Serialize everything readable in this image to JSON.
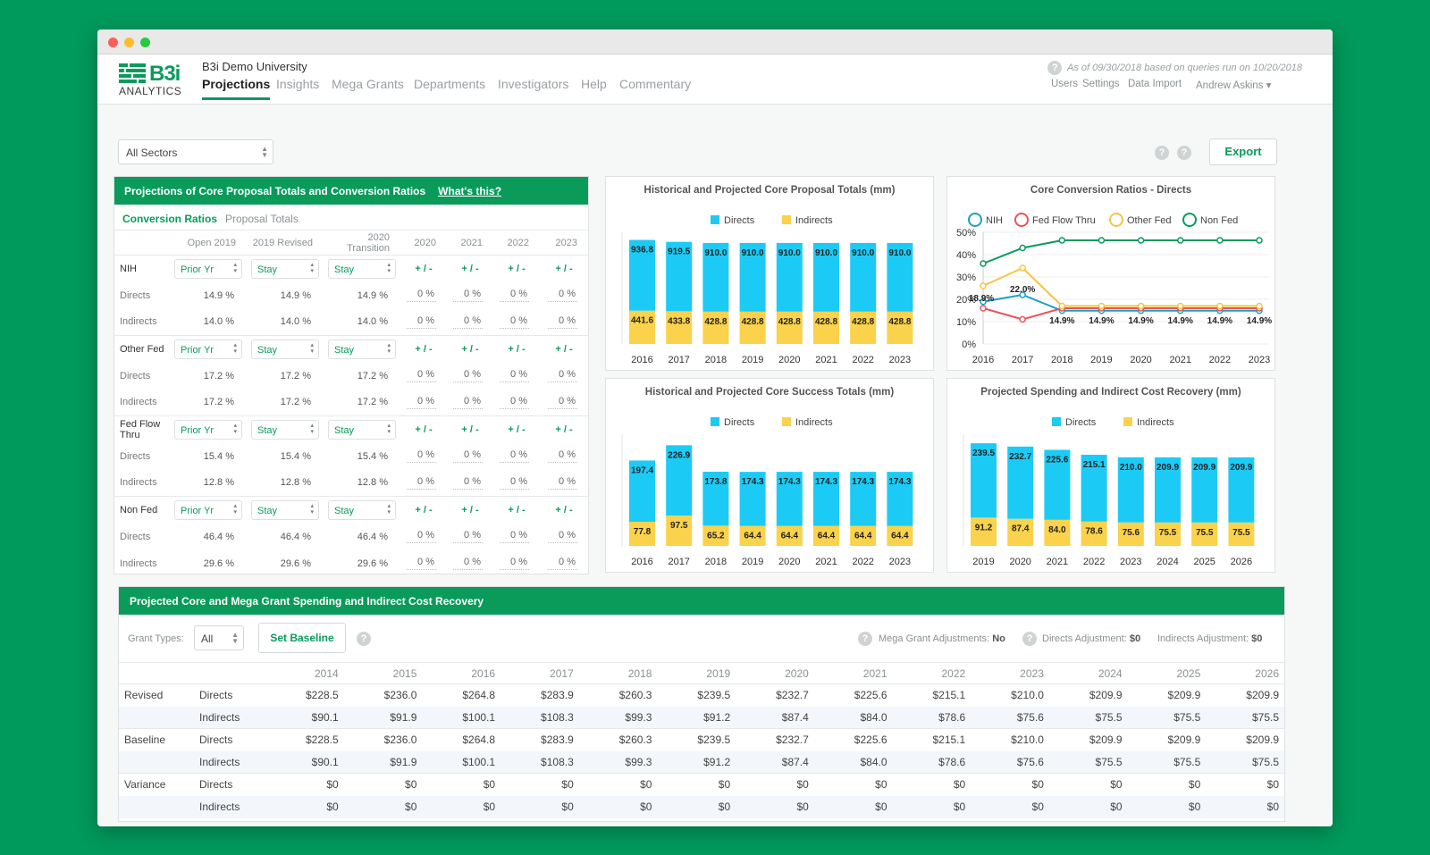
{
  "app": {
    "logo_text": "B3i",
    "logo_sub": "ANALYTICS",
    "university": "B3i Demo University",
    "nav": [
      "Projections",
      "Insights",
      "Mega Grants",
      "Departments",
      "Investigators",
      "Help",
      "Commentary"
    ],
    "as_of": "As of 09/30/2018 based on queries run on 10/20/2018",
    "top_links": [
      "Users",
      "Settings",
      "Data Import",
      "Andrew Askins ▾"
    ],
    "sector": "All Sectors",
    "export": "Export",
    "help_glyph": "?"
  },
  "projections": {
    "title": "Projections of Core Proposal Totals and Conversion Ratios",
    "whats_this": "What's this?",
    "tabs": [
      "Conversion Ratios",
      "Proposal Totals"
    ],
    "columns": [
      "Open 2019",
      "2019 Revised",
      "2020 Transition",
      "2020",
      "2021",
      "2022",
      "2023"
    ],
    "pm": "+ / -",
    "zero": "0 %",
    "groups": [
      {
        "name": "NIH",
        "sel": [
          "Prior Yr",
          "Stay",
          "Stay"
        ],
        "directs": [
          "14.9 %",
          "14.9 %",
          "14.9 %"
        ],
        "indirects": [
          "14.0 %",
          "14.0 %",
          "14.0 %"
        ]
      },
      {
        "name": "Other Fed",
        "sel": [
          "Prior Yr",
          "Stay",
          "Stay"
        ],
        "directs": [
          "17.2 %",
          "17.2 %",
          "17.2 %"
        ],
        "indirects": [
          "17.2 %",
          "17.2 %",
          "17.2 %"
        ]
      },
      {
        "name": "Fed Flow Thru",
        "sel": [
          "Prior Yr",
          "Stay",
          "Stay"
        ],
        "directs": [
          "15.4 %",
          "15.4 %",
          "15.4 %"
        ],
        "indirects": [
          "12.8 %",
          "12.8 %",
          "12.8 %"
        ]
      },
      {
        "name": "Non Fed",
        "sel": [
          "Prior Yr",
          "Stay",
          "Stay"
        ],
        "directs": [
          "46.4 %",
          "46.4 %",
          "46.4 %"
        ],
        "indirects": [
          "29.6 %",
          "29.6 %",
          "29.6 %"
        ]
      }
    ],
    "row_labels": {
      "directs": "Directs",
      "indirects": "Indirects"
    }
  },
  "colors": {
    "directs": "#1ccbf5",
    "indirects": "#fad24b",
    "green": "#0a9b5b",
    "nih": "#1aa0c4",
    "fedflow": "#e8545a",
    "otherfed": "#f5c542",
    "nonfed": "#0a9b5b"
  },
  "chart_data": [
    {
      "type": "bar",
      "stacked": true,
      "title": "Historical and Projected Core Proposal Totals (mm)",
      "categories": [
        "2016",
        "2017",
        "2018",
        "2019",
        "2020",
        "2021",
        "2022",
        "2023"
      ],
      "series": [
        {
          "name": "Directs",
          "values": [
            936.8,
            919.5,
            910.0,
            910.0,
            910.0,
            910.0,
            910.0,
            910.0
          ]
        },
        {
          "name": "Indirects",
          "values": [
            441.6,
            433.8,
            428.8,
            428.8,
            428.8,
            428.8,
            428.8,
            428.8
          ]
        }
      ],
      "legend": "top"
    },
    {
      "type": "line",
      "title": "Core Conversion Ratios - Directs",
      "x": [
        "2016",
        "2017",
        "2018",
        "2019",
        "2020",
        "2021",
        "2022",
        "2023"
      ],
      "ylim": [
        0,
        50
      ],
      "yticks": [
        "0%",
        "10%",
        "20%",
        "30%",
        "40%",
        "50%"
      ],
      "series": [
        {
          "name": "NIH",
          "values": [
            18.9,
            22.0,
            14.9,
            14.9,
            14.9,
            14.9,
            14.9,
            14.9
          ]
        },
        {
          "name": "Fed Flow Thru",
          "values": [
            16,
            11,
            16,
            16,
            16,
            16,
            16,
            16
          ]
        },
        {
          "name": "Other Fed",
          "values": [
            26,
            34,
            17,
            17,
            17,
            17,
            17,
            17
          ]
        },
        {
          "name": "Non Fed",
          "values": [
            36,
            43,
            46.4,
            46.4,
            46.4,
            46.4,
            46.4,
            46.4
          ]
        }
      ],
      "labels": [
        {
          "x": "2016",
          "text": "18.9%"
        },
        {
          "x": "2017",
          "text": "22.0%"
        },
        {
          "x": "2018",
          "text": "14.9%"
        },
        {
          "x": "2019",
          "text": "14.9%"
        },
        {
          "x": "2020",
          "text": "14.9%"
        },
        {
          "x": "2021",
          "text": "14.9%"
        },
        {
          "x": "2022",
          "text": "14.9%"
        },
        {
          "x": "2023",
          "text": "14.9%"
        }
      ],
      "legend": "top"
    },
    {
      "type": "bar",
      "stacked": true,
      "title": "Historical and Projected Core Success Totals (mm)",
      "categories": [
        "2016",
        "2017",
        "2018",
        "2019",
        "2020",
        "2021",
        "2022",
        "2023"
      ],
      "series": [
        {
          "name": "Directs",
          "values": [
            197.4,
            226.9,
            173.8,
            174.3,
            174.3,
            174.3,
            174.3,
            174.3
          ]
        },
        {
          "name": "Indirects",
          "values": [
            77.8,
            97.5,
            65.2,
            64.4,
            64.4,
            64.4,
            64.4,
            64.4
          ]
        }
      ],
      "legend": "top"
    },
    {
      "type": "bar",
      "stacked": true,
      "title": "Projected Spending and Indirect Cost Recovery (mm)",
      "categories": [
        "2019",
        "2020",
        "2021",
        "2022",
        "2023",
        "2024",
        "2025",
        "2026"
      ],
      "series": [
        {
          "name": "Directs",
          "values": [
            239.5,
            232.7,
            225.6,
            215.1,
            210.0,
            209.9,
            209.9,
            209.9
          ]
        },
        {
          "name": "Indirects",
          "values": [
            91.2,
            87.4,
            84.0,
            78.6,
            75.6,
            75.5,
            75.5,
            75.5
          ]
        }
      ],
      "legend": "top"
    }
  ],
  "bottom": {
    "title": "Projected Core and Mega Grant Spending and Indirect Cost Recovery",
    "grant_types_label": "Grant Types:",
    "grant_type": "All",
    "set_baseline": "Set Baseline",
    "mega_adj_label": "Mega Grant Adjustments:",
    "mega_adj": "No",
    "dir_adj_label": "Directs Adjustment:",
    "dir_adj": "$0",
    "ind_adj_label": "Indirects Adjustment:",
    "ind_adj": "$0",
    "years": [
      "2014",
      "2015",
      "2016",
      "2017",
      "2018",
      "2019",
      "2020",
      "2021",
      "2022",
      "2023",
      "2024",
      "2025",
      "2026"
    ],
    "rows": [
      {
        "group": "Revised",
        "label": "Directs",
        "values": [
          "$228.5",
          "$236.0",
          "$264.8",
          "$283.9",
          "$260.3",
          "$239.5",
          "$232.7",
          "$225.6",
          "$215.1",
          "$210.0",
          "$209.9",
          "$209.9",
          "$209.9"
        ]
      },
      {
        "group": "",
        "label": "Indirects",
        "values": [
          "$90.1",
          "$91.9",
          "$100.1",
          "$108.3",
          "$99.3",
          "$91.2",
          "$87.4",
          "$84.0",
          "$78.6",
          "$75.6",
          "$75.5",
          "$75.5",
          "$75.5"
        ]
      },
      {
        "group": "Baseline",
        "label": "Directs",
        "values": [
          "$228.5",
          "$236.0",
          "$264.8",
          "$283.9",
          "$260.3",
          "$239.5",
          "$232.7",
          "$225.6",
          "$215.1",
          "$210.0",
          "$209.9",
          "$209.9",
          "$209.9"
        ]
      },
      {
        "group": "",
        "label": "Indirects",
        "values": [
          "$90.1",
          "$91.9",
          "$100.1",
          "$108.3",
          "$99.3",
          "$91.2",
          "$87.4",
          "$84.0",
          "$78.6",
          "$75.6",
          "$75.5",
          "$75.5",
          "$75.5"
        ]
      },
      {
        "group": "Variance",
        "label": "Directs",
        "values": [
          "$0",
          "$0",
          "$0",
          "$0",
          "$0",
          "$0",
          "$0",
          "$0",
          "$0",
          "$0",
          "$0",
          "$0",
          "$0"
        ]
      },
      {
        "group": "",
        "label": "Indirects",
        "values": [
          "$0",
          "$0",
          "$0",
          "$0",
          "$0",
          "$0",
          "$0",
          "$0",
          "$0",
          "$0",
          "$0",
          "$0",
          "$0"
        ]
      }
    ]
  }
}
